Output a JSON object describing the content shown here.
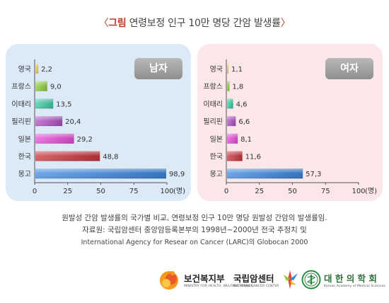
{
  "header": {
    "bracket_open": "〈",
    "tag": "그림",
    "title": " 연령보정 인구 10만 명당 간암 발생률",
    "bracket_close": "〉"
  },
  "chart_data": [
    {
      "type": "bar",
      "orientation": "horizontal",
      "title": "남자",
      "categories": [
        "영국",
        "프랑스",
        "이태리",
        "필리핀",
        "일본",
        "한국",
        "몽고"
      ],
      "values": [
        2.2,
        9.0,
        13.5,
        20.4,
        29.2,
        48.8,
        98.9
      ],
      "value_labels": [
        "2,2",
        "9,0",
        "13,5",
        "20,4",
        "29,2",
        "48,8",
        "98,9"
      ],
      "xlim": [
        0,
        100
      ],
      "xticks": [
        "0",
        "25",
        "50",
        "75",
        "100"
      ],
      "xunit": "(명)",
      "bar_colors": [
        "#e9d64a",
        "#8fcf3c",
        "#3cc9a5",
        "#b04fc4",
        "#e64bd8",
        "#c9323b",
        "#3a86dd"
      ]
    },
    {
      "type": "bar",
      "orientation": "horizontal",
      "title": "여자",
      "categories": [
        "영국",
        "프랑스",
        "이태리",
        "필리핀",
        "일본",
        "한국",
        "몽고"
      ],
      "values": [
        1.1,
        1.8,
        4.6,
        6.6,
        8.1,
        11.6,
        57.3
      ],
      "value_labels": [
        "1,1",
        "1,8",
        "4,6",
        "6,6",
        "8,1",
        "11,6",
        "57,3"
      ],
      "xlim": [
        0,
        100
      ],
      "xticks": [
        "0",
        "25",
        "50",
        "75",
        "100"
      ],
      "xunit": "(명)",
      "bar_colors": [
        "#e9d64a",
        "#8fcf3c",
        "#3cc9a5",
        "#b04fc4",
        "#e64bd8",
        "#c9323b",
        "#3a86dd"
      ]
    }
  ],
  "notes": {
    "line1": "원발성 간암 발생률의 국가별 비교, 연령보정 인구 10만 명당 원발성 간암의 발생률임.",
    "line2": "자료원: 국립암센터 중앙암등록본부의 1998년~2000년 전국 추정치 및",
    "line3": "International Agency for Resear on Cancer (LARC)의 Globocan 2000"
  },
  "logos": {
    "mohw": {
      "name": "보건복지부",
      "sub": "MINISTRY FOR HEALTH, WELFARE AFFAIRS"
    },
    "ncc": {
      "name": "국립암센터",
      "sub": "NATIONAL CANCER CENTER"
    },
    "kams": {
      "name": "대 한 의 학 회",
      "sub": "Korean Academy of Medical Sciences"
    }
  }
}
